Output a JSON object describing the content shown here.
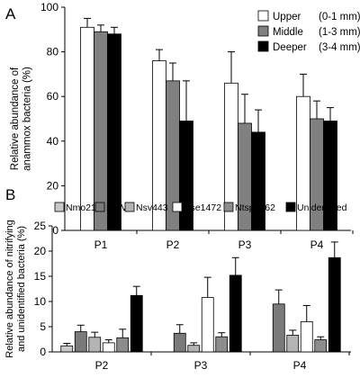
{
  "chart_data": [
    {
      "panel_label": "A",
      "type": "bar",
      "ylabel_lines": [
        "Relative abundance of",
        "anammox bacteria (%)"
      ],
      "categories": [
        "P1",
        "P2",
        "P3",
        "P4"
      ],
      "ylim": [
        0,
        100
      ],
      "yticks": [
        "0",
        "20",
        "40",
        "60",
        "80",
        "100"
      ],
      "legend_position": "top-right",
      "series": [
        {
          "name": "Upper",
          "range": "(0-1 mm)",
          "color": "#ffffff",
          "values": [
            91,
            76,
            66,
            60
          ],
          "errors": [
            4,
            5,
            14,
            10
          ]
        },
        {
          "name": "Middle",
          "range": "(1-3 mm)",
          "color": "#808080",
          "values": [
            89,
            67,
            48,
            50
          ],
          "errors": [
            3,
            8,
            13,
            8
          ]
        },
        {
          "name": "Deeper",
          "range": "(3-4 mm)",
          "color": "#000000",
          "values": [
            88,
            49,
            44,
            49
          ],
          "errors": [
            3,
            18,
            10,
            6
          ]
        }
      ]
    },
    {
      "panel_label": "B",
      "type": "bar",
      "ylabel_lines": [
        "Relative abundance of nitrifying",
        "and unidentified bacteria (%)"
      ],
      "categories": [
        "P2",
        "P3",
        "P4"
      ],
      "ylim": [
        0,
        25
      ],
      "yticks": [
        "0",
        "5",
        "10",
        "15",
        "20",
        "25"
      ],
      "legend_position": "top",
      "series": [
        {
          "name": "Nmo218",
          "color": "#c8c8c8",
          "values": [
            1.2,
            0,
            0
          ],
          "errors": [
            0.5,
            0,
            0
          ]
        },
        {
          "name": "NmV",
          "color": "#7a7a7a",
          "values": [
            4.0,
            3.7,
            9.5
          ],
          "errors": [
            1.3,
            1.7,
            2.8
          ]
        },
        {
          "name": "Nsv443",
          "color": "#b4b4b4",
          "values": [
            2.9,
            1.3,
            3.3
          ],
          "errors": [
            1.0,
            0.5,
            1.0
          ]
        },
        {
          "name": "Nse1472",
          "color": "#ffffff",
          "values": [
            1.8,
            10.8,
            6.0
          ],
          "errors": [
            0.6,
            4.0,
            3.2
          ]
        },
        {
          "name": "Ntspa662",
          "color": "#8c8c8c",
          "values": [
            2.8,
            3.0,
            2.4
          ],
          "errors": [
            1.7,
            0.8,
            0.6
          ]
        },
        {
          "name": "Unidentified",
          "color": "#000000",
          "values": [
            11.2,
            15.2,
            18.7
          ],
          "errors": [
            1.8,
            3.5,
            3.1
          ]
        }
      ]
    }
  ]
}
